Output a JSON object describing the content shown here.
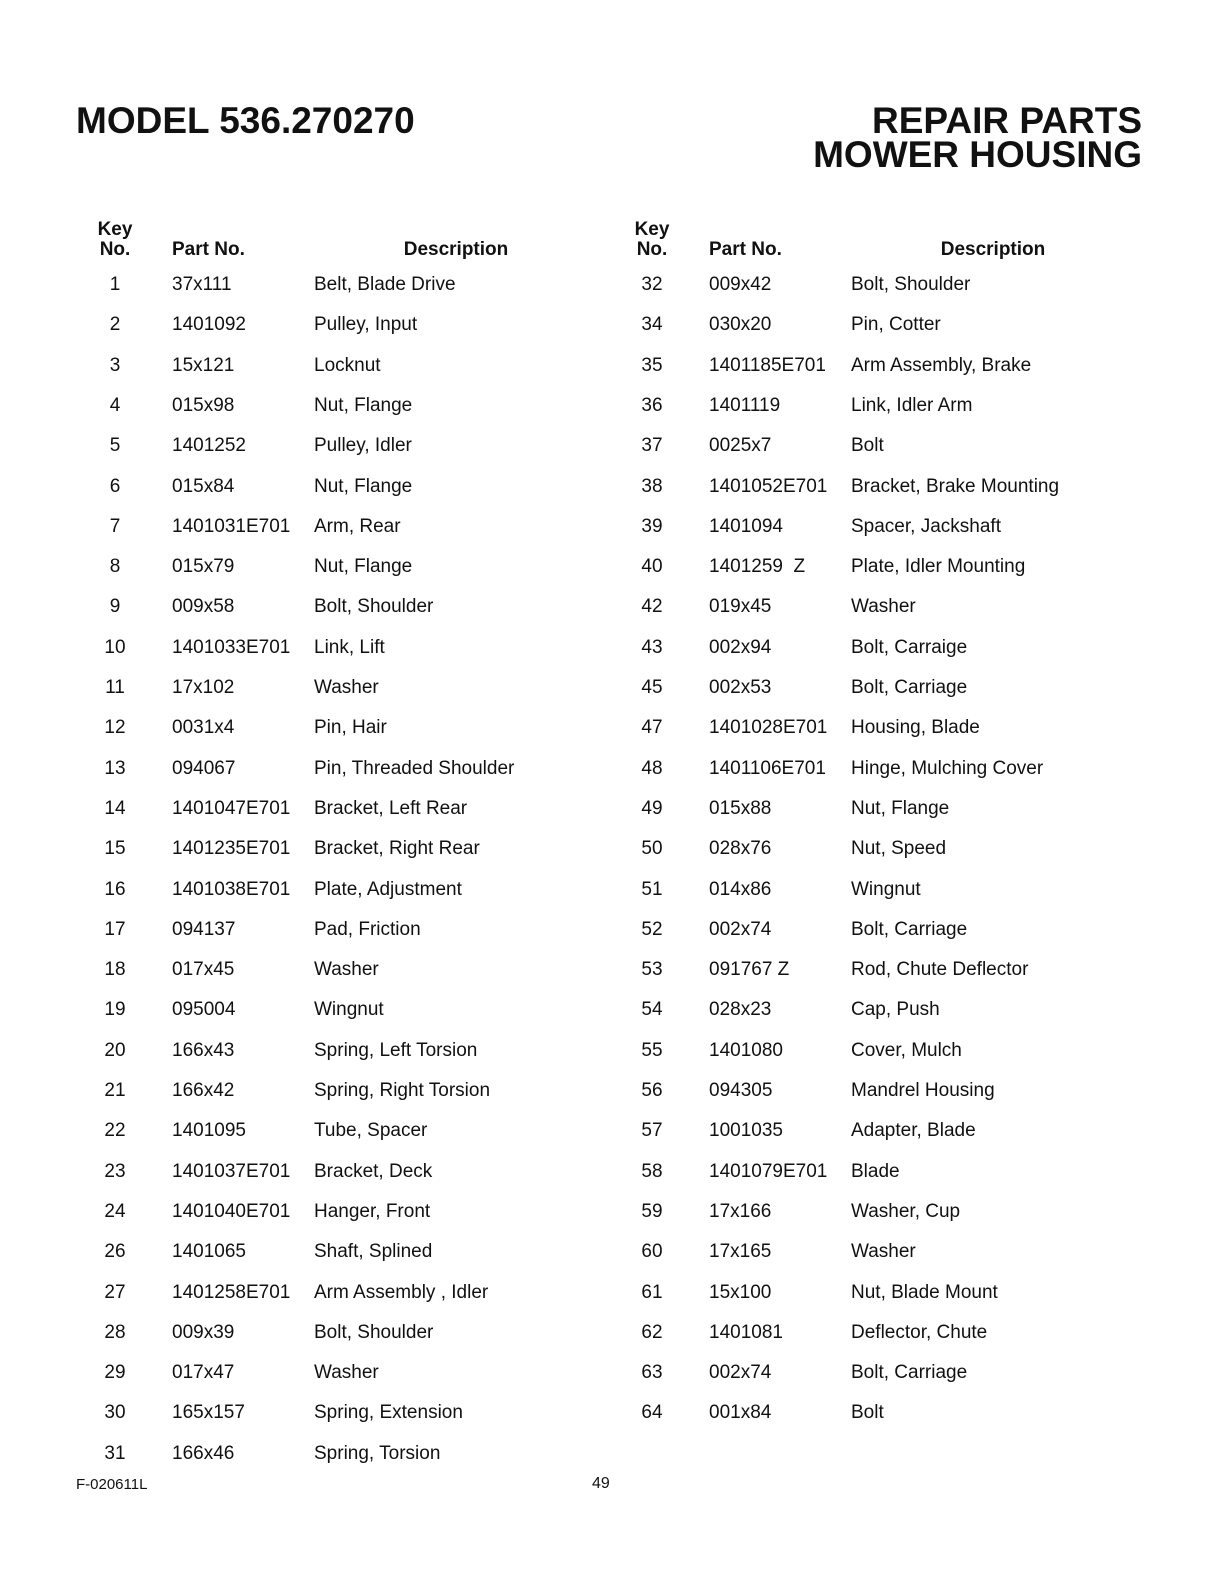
{
  "header": {
    "model": "MODEL 536.270270",
    "title_line1": "REPAIR PARTS",
    "title_line2": "MOWER HOUSING"
  },
  "columns": {
    "key_line1": "Key",
    "key_line2": "No.",
    "part": "Part No.",
    "description": "Description"
  },
  "left_table": [
    [
      "1",
      "37x111",
      "Belt, Blade Drive"
    ],
    [
      "2",
      "1401092",
      "Pulley, Input"
    ],
    [
      "3",
      "15x121",
      "Locknut"
    ],
    [
      "4",
      "015x98",
      "Nut, Flange"
    ],
    [
      "5",
      "1401252",
      "Pulley, Idler"
    ],
    [
      "6",
      "015x84",
      "Nut, Flange"
    ],
    [
      "7",
      "1401031E701",
      "Arm, Rear"
    ],
    [
      "8",
      "015x79",
      "Nut, Flange"
    ],
    [
      "9",
      "009x58",
      "Bolt, Shoulder"
    ],
    [
      "10",
      "1401033E701",
      "Link, Lift"
    ],
    [
      "11",
      "17x102",
      "Washer"
    ],
    [
      "12",
      "0031x4",
      "Pin, Hair"
    ],
    [
      "13",
      "094067",
      "Pin, Threaded Shoulder"
    ],
    [
      "14",
      "1401047E701",
      "Bracket, Left Rear"
    ],
    [
      "15",
      "1401235E701",
      "Bracket, Right Rear"
    ],
    [
      "16",
      "1401038E701",
      "Plate, Adjustment"
    ],
    [
      "17",
      "094137",
      "Pad, Friction"
    ],
    [
      "18",
      "017x45",
      "Washer"
    ],
    [
      "19",
      "095004",
      "Wingnut"
    ],
    [
      "20",
      "166x43",
      "Spring, Left Torsion"
    ],
    [
      "21",
      "166x42",
      "Spring, Right Torsion"
    ],
    [
      "22",
      "1401095",
      "Tube, Spacer"
    ],
    [
      "23",
      "1401037E701",
      "Bracket, Deck"
    ],
    [
      "24",
      "1401040E701",
      "Hanger, Front"
    ],
    [
      "26",
      "1401065",
      "Shaft, Splined"
    ],
    [
      "27",
      "1401258E701",
      "Arm Assembly , Idler"
    ],
    [
      "28",
      "009x39",
      "Bolt, Shoulder"
    ],
    [
      "29",
      "017x47",
      "Washer"
    ],
    [
      "30",
      "165x157",
      "Spring, Extension"
    ],
    [
      "31",
      "166x46",
      "Spring, Torsion"
    ]
  ],
  "right_table": [
    [
      "32",
      "009x42",
      "Bolt, Shoulder"
    ],
    [
      "34",
      "030x20",
      "Pin, Cotter"
    ],
    [
      "35",
      "1401185E701",
      "Arm Assembly, Brake"
    ],
    [
      "36",
      "1401119",
      "Link, Idler Arm"
    ],
    [
      "37",
      "0025x7",
      "Bolt"
    ],
    [
      "38",
      "1401052E701",
      "Bracket, Brake Mounting"
    ],
    [
      "39",
      "1401094",
      "Spacer, Jackshaft"
    ],
    [
      "40",
      "1401259  Z",
      "Plate, Idler Mounting"
    ],
    [
      "42",
      "019x45",
      "Washer"
    ],
    [
      "43",
      "002x94",
      "Bolt, Carraige"
    ],
    [
      "45",
      "002x53",
      "Bolt, Carriage"
    ],
    [
      "47",
      "1401028E701",
      "Housing, Blade"
    ],
    [
      "48",
      "1401106E701",
      "Hinge, Mulching Cover"
    ],
    [
      "49",
      "015x88",
      "Nut, Flange"
    ],
    [
      "50",
      "028x76",
      "Nut, Speed"
    ],
    [
      "51",
      "014x86",
      "Wingnut"
    ],
    [
      "52",
      "002x74",
      "Bolt, Carriage"
    ],
    [
      "53",
      "091767 Z",
      "Rod, Chute Deflector"
    ],
    [
      "54",
      "028x23",
      "Cap, Push"
    ],
    [
      "55",
      "1401080",
      "Cover, Mulch"
    ],
    [
      "56",
      "094305",
      "Mandrel Housing"
    ],
    [
      "57",
      "1001035",
      "Adapter, Blade"
    ],
    [
      "58",
      "1401079E701",
      "Blade"
    ],
    [
      "59",
      "17x166",
      "Washer, Cup"
    ],
    [
      "60",
      "17x165",
      "Washer"
    ],
    [
      "61",
      "15x100",
      "Nut, Blade Mount"
    ],
    [
      "62",
      "1401081",
      "Deflector, Chute"
    ],
    [
      "63",
      "002x74",
      "Bolt, Carriage"
    ],
    [
      "64",
      "001x84",
      "Bolt"
    ]
  ],
  "footer": {
    "form_number": "F-020611L",
    "page_number": "49"
  }
}
